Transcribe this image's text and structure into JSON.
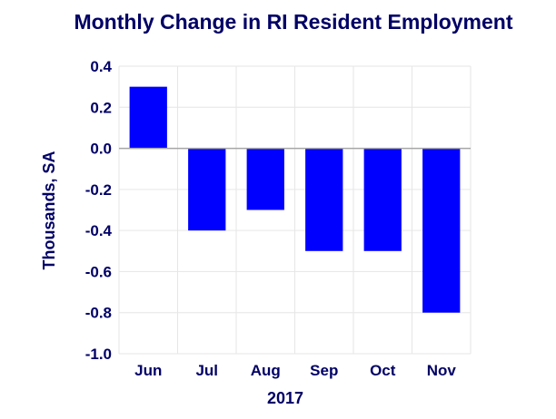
{
  "chart_data": {
    "type": "bar",
    "title": "Monthly Change in RI Resident Employment",
    "categories": [
      "Jun",
      "Jul",
      "Aug",
      "Sep",
      "Oct",
      "Nov"
    ],
    "values": [
      0.3,
      -0.4,
      -0.3,
      -0.5,
      -0.5,
      -0.8
    ],
    "xlabel": "2017",
    "ylabel": "Thousands, SA",
    "ylim": [
      -1.0,
      0.4
    ],
    "yticks": [
      "0.4",
      "0.2",
      "0.0",
      "-0.2",
      "-0.4",
      "-0.6",
      "-0.8",
      "-1.0"
    ],
    "ytick_values": [
      0.4,
      0.2,
      0.0,
      -0.2,
      -0.4,
      -0.6,
      -0.8,
      -1.0
    ],
    "grid": true,
    "legend": "none"
  },
  "colors": {
    "bar": "#0000ff",
    "text": "#000066",
    "grid": "#e6e6e6",
    "axis": "#a6a6a6"
  }
}
